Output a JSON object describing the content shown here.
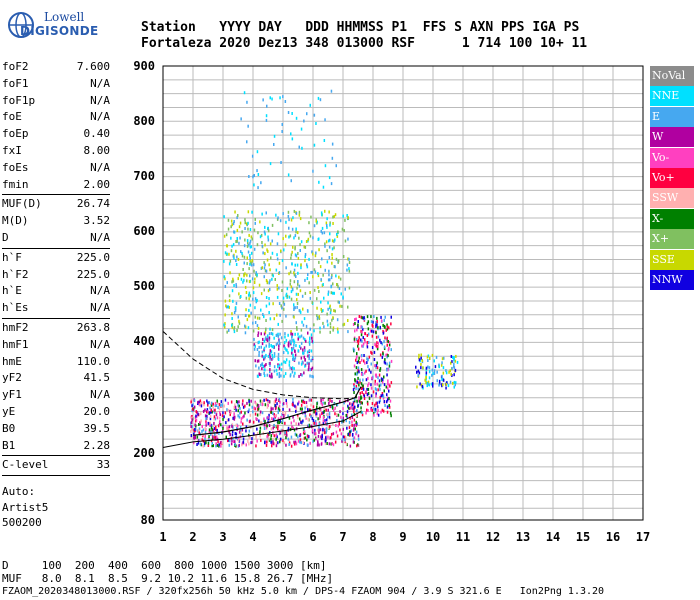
{
  "logo": {
    "line1": "Lowell",
    "line2": "DIGISONDE"
  },
  "header": {
    "row1": "Station   YYYY DAY   DDD HHMMSS P1  FFS S AXN PPS IGA PS",
    "row2": "Fortaleza 2020 Dez13 348 013000 RSF      1 714 100 10+ 11"
  },
  "params": [
    {
      "k": "foF2",
      "v": "7.600"
    },
    {
      "k": "foF1",
      "v": "N/A"
    },
    {
      "k": "foF1p",
      "v": "N/A"
    },
    {
      "k": "foE",
      "v": "N/A"
    },
    {
      "k": "foEp",
      "v": "0.40"
    },
    {
      "k": "fxI",
      "v": "8.00"
    },
    {
      "k": "foEs",
      "v": "N/A"
    },
    {
      "k": "fmin",
      "v": "2.00"
    },
    {
      "sep": true
    },
    {
      "k": "MUF(D)",
      "v": "26.74"
    },
    {
      "k": "M(D)",
      "v": "3.52"
    },
    {
      "k": "D",
      "v": "N/A"
    },
    {
      "sep": true
    },
    {
      "k": "h`F",
      "v": "225.0"
    },
    {
      "k": "h`F2",
      "v": "225.0"
    },
    {
      "k": "h`E",
      "v": "N/A"
    },
    {
      "k": "h`Es",
      "v": "N/A"
    },
    {
      "sep": true
    },
    {
      "k": "hmF2",
      "v": "263.8"
    },
    {
      "k": "hmF1",
      "v": "N/A"
    },
    {
      "k": "hmE",
      "v": "110.0"
    },
    {
      "k": "yF2",
      "v": "41.5"
    },
    {
      "k": "yF1",
      "v": "N/A"
    },
    {
      "k": "yE",
      "v": "20.0"
    },
    {
      "k": "B0",
      "v": "39.5"
    },
    {
      "k": "B1",
      "v": "2.28"
    },
    {
      "sep": true
    },
    {
      "k": "C-level",
      "v": "33"
    },
    {
      "sep": true
    }
  ],
  "auto": {
    "l1": "Auto:",
    "l2": "Artist5",
    "l3": "500200"
  },
  "chart": {
    "y_ticks": [
      "900",
      "800",
      "700",
      "600",
      "500",
      "400",
      "300",
      "200",
      "80"
    ],
    "x_ticks": [
      "1",
      "2",
      "3",
      "4",
      "5",
      "6",
      "7",
      "8",
      "9",
      "10",
      "11",
      "12",
      "13",
      "14",
      "15",
      "16",
      "17"
    ]
  },
  "legend": [
    {
      "label": "NoVal",
      "color": "#8c8c8c"
    },
    {
      "label": "NNE",
      "color": "#00e0ff"
    },
    {
      "label": "E",
      "color": "#46a8f0"
    },
    {
      "label": "W",
      "color": "#b000a0"
    },
    {
      "label": "Vo-",
      "color": "#ff40c0"
    },
    {
      "label": "Vo+",
      "color": "#ff0040"
    },
    {
      "label": "SSW",
      "color": "#ffb0b0"
    },
    {
      "label": "X-",
      "color": "#008000"
    },
    {
      "label": "X+",
      "color": "#80c060"
    },
    {
      "label": "SSE",
      "color": "#c8d800"
    },
    {
      "label": "NNW",
      "color": "#1000e0"
    }
  ],
  "footer": {
    "d_row": "D     100  200  400  600  800 1000 1500 3000 [km]",
    "muf_row": "MUF   8.0  8.1  8.5  9.2 10.2 11.6 15.8 26.7 [MHz]",
    "file_row": "FZAOM_2020348013000.RSF / 320fx256h 50 kHz 5.0 km / DPS-4 FZAOM 904 / 3.9 S 321.6 E   Ion2Png 1.3.20"
  }
}
